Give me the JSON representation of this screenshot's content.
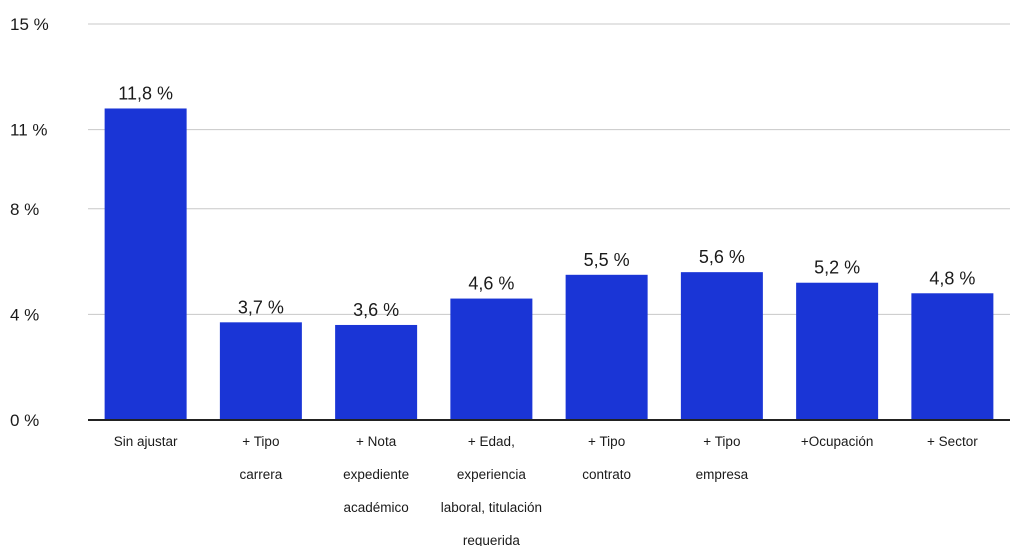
{
  "chart_data": {
    "type": "bar",
    "title": "",
    "xlabel": "",
    "ylabel": "",
    "ylim": [
      0,
      15
    ],
    "y_ticks": [
      {
        "value": 0,
        "label": "0 %"
      },
      {
        "value": 4,
        "label": "4 %"
      },
      {
        "value": 8,
        "label": "8 %"
      },
      {
        "value": 11,
        "label": "11 %"
      },
      {
        "value": 15,
        "label": "15 %"
      }
    ],
    "grid": true,
    "legend": "none",
    "bar_color": "#1a35d6",
    "categories": [
      [
        "Sin ajustar"
      ],
      [
        "+ Tipo",
        "carrera"
      ],
      [
        "+ Nota",
        "expediente",
        "académico"
      ],
      [
        "+ Edad,",
        "experiencia",
        "laboral, titulación",
        "requerida"
      ],
      [
        "+ Tipo",
        "contrato"
      ],
      [
        "+ Tipo",
        "empresa"
      ],
      [
        "+Ocupación"
      ],
      [
        "+ Sector"
      ]
    ],
    "values": [
      11.8,
      3.7,
      3.6,
      4.6,
      5.5,
      5.6,
      5.2,
      4.8
    ],
    "data_labels": [
      "11,8 %",
      "3,7 %",
      "3,6 %",
      "4,6 %",
      "5,5 %",
      "5,6 %",
      "5,2 %",
      "4,8 %"
    ]
  }
}
